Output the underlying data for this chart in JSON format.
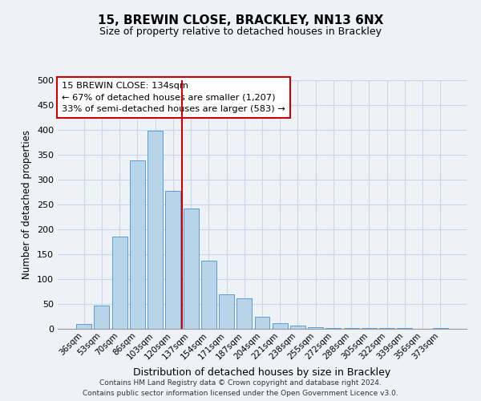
{
  "title": "15, BREWIN CLOSE, BRACKLEY, NN13 6NX",
  "subtitle": "Size of property relative to detached houses in Brackley",
  "xlabel": "Distribution of detached houses by size in Brackley",
  "ylabel": "Number of detached properties",
  "footer_line1": "Contains HM Land Registry data © Crown copyright and database right 2024.",
  "footer_line2": "Contains public sector information licensed under the Open Government Licence v3.0.",
  "bar_labels": [
    "36sqm",
    "53sqm",
    "70sqm",
    "86sqm",
    "103sqm",
    "120sqm",
    "137sqm",
    "154sqm",
    "171sqm",
    "187sqm",
    "204sqm",
    "221sqm",
    "238sqm",
    "255sqm",
    "272sqm",
    "288sqm",
    "305sqm",
    "322sqm",
    "339sqm",
    "356sqm",
    "373sqm"
  ],
  "bar_values": [
    10,
    47,
    185,
    338,
    398,
    278,
    242,
    137,
    70,
    62,
    25,
    12,
    6,
    4,
    2,
    1,
    1,
    1,
    1,
    0,
    2
  ],
  "bar_color": "#b8d4e8",
  "bar_edge_color": "#5b9bd5",
  "grid_color": "#c8d8e8",
  "background_color": "#eef2f7",
  "vline_color": "#cc0000",
  "annotation_title": "15 BREWIN CLOSE: 134sqm",
  "annotation_line1": "← 67% of detached houses are smaller (1,207)",
  "annotation_line2": "33% of semi-detached houses are larger (583) →",
  "annotation_box_color": "#ffffff",
  "annotation_box_edge_color": "#cc0000",
  "ylim": [
    0,
    500
  ],
  "yticks": [
    0,
    50,
    100,
    150,
    200,
    250,
    300,
    350,
    400,
    450,
    500
  ]
}
